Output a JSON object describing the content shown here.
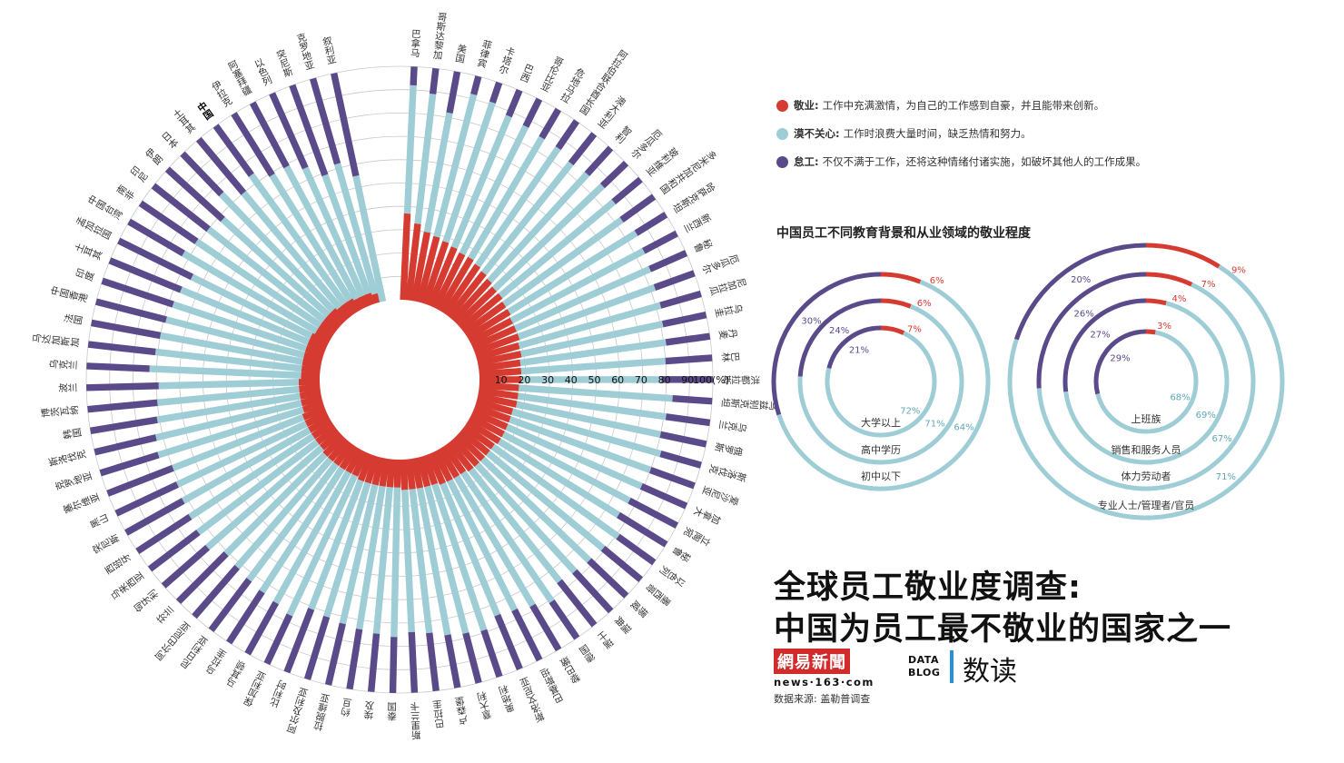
{
  "title": {
    "line1": "全球员工敬业度调查:",
    "line2": "中国为员工最不敬业的国家之一"
  },
  "legend": [
    {
      "key": "敬业:",
      "text": "工作中充满激情，为自己的工作感到自豪，并且能带来创新。",
      "color": "#d63b32"
    },
    {
      "key": "漠不关心:",
      "text": "工作时浪费大量时间，缺乏热情和努力。",
      "color": "#9ecdd6"
    },
    {
      "key": "怠工:",
      "text": "不仅不满于工作，还将这种情绪付诸实施，如破坏其他人的工作成果。",
      "color": "#5b4a8a"
    }
  ],
  "section_title": "中国员工不同教育背景和从业领域的敬业程度",
  "logo": {
    "brand": "網易新聞",
    "url": "news·163·com",
    "datablog_1": "DATA",
    "datablog_2": "BLOG",
    "shudu": "数读"
  },
  "source": "数据来源: 盖勒普调查",
  "colors": {
    "engaged": "#d63b32",
    "not_engaged": "#9ecdd6",
    "disengaged": "#5b4a8a",
    "grid": "#c8c8c8"
  },
  "chart_data": [
    {
      "type": "radial-bar",
      "axis_ticks": [
        "10",
        "20",
        "30",
        "40",
        "50",
        "60",
        "70",
        "80",
        "90",
        "100(%)"
      ],
      "series": [
        {
          "name": "敬业",
          "color": "#d63b32"
        },
        {
          "name": "漠不关心",
          "color": "#9ecdd6"
        },
        {
          "name": "怠工",
          "color": "#5b4a8a"
        }
      ],
      "countries": [
        {
          "name": "巴拿马",
          "engaged": 37,
          "not_engaged": 55,
          "disengaged": 8
        },
        {
          "name": "哥斯达黎加",
          "engaged": 33,
          "not_engaged": 56,
          "disengaged": 11
        },
        {
          "name": "美国",
          "engaged": 30,
          "not_engaged": 52,
          "disengaged": 18
        },
        {
          "name": "菲律宾",
          "engaged": 29,
          "not_engaged": 63,
          "disengaged": 8
        },
        {
          "name": "卡塔尔",
          "engaged": 28,
          "not_engaged": 63,
          "disengaged": 9
        },
        {
          "name": "巴西",
          "engaged": 27,
          "not_engaged": 61,
          "disengaged": 12
        },
        {
          "name": "哥伦比亚",
          "engaged": 26,
          "not_engaged": 61,
          "disengaged": 13
        },
        {
          "name": "危地马拉",
          "engaged": 26,
          "not_engaged": 60,
          "disengaged": 14
        },
        {
          "name": "阿拉伯联合酋长国",
          "engaged": 25,
          "not_engaged": 61,
          "disengaged": 14
        },
        {
          "name": "澳大利亚",
          "engaged": 24,
          "not_engaged": 60,
          "disengaged": 16
        },
        {
          "name": "智利",
          "engaged": 23,
          "not_engaged": 62,
          "disengaged": 15
        },
        {
          "name": "厄瓜多尔",
          "engaged": 22,
          "not_engaged": 64,
          "disengaged": 14
        },
        {
          "name": "玻利维亚",
          "engaged": 22,
          "not_engaged": 63,
          "disengaged": 15
        },
        {
          "name": "多米尼加共和国",
          "engaged": 21,
          "not_engaged": 62,
          "disengaged": 17
        },
        {
          "name": "哈萨克斯坦",
          "engaged": 21,
          "not_engaged": 64,
          "disengaged": 15
        },
        {
          "name": "新西兰",
          "engaged": 20,
          "not_engaged": 64,
          "disengaged": 16
        },
        {
          "name": "秘鲁",
          "engaged": 20,
          "not_engaged": 63,
          "disengaged": 17
        },
        {
          "name": "厄瓜多尔",
          "engaged": 20,
          "not_engaged": 62,
          "disengaged": 18
        },
        {
          "name": "尼加拉瓜",
          "engaged": 19,
          "not_engaged": 63,
          "disengaged": 18
        },
        {
          "name": "乌拉圭",
          "engaged": 19,
          "not_engaged": 62,
          "disengaged": 19
        },
        {
          "name": "丹麦",
          "engaged": 18,
          "not_engaged": 63,
          "disengaged": 19
        },
        {
          "name": "巴林",
          "engaged": 18,
          "not_engaged": 62,
          "disengaged": 20
        },
        {
          "name": "洪都拉斯",
          "engaged": 18,
          "not_engaged": 60,
          "disengaged": 22
        },
        {
          "name": "乌兹别克斯坦",
          "engaged": 17,
          "not_engaged": 66,
          "disengaged": 17
        },
        {
          "name": "乌克兰",
          "engaged": 17,
          "not_engaged": 64,
          "disengaged": 19
        },
        {
          "name": "俄罗斯",
          "engaged": 17,
          "not_engaged": 63,
          "disengaged": 20
        },
        {
          "name": "斯洛伐克",
          "engaged": 16,
          "not_engaged": 66,
          "disengaged": 18
        },
        {
          "name": "爱沙尼亚",
          "engaged": 16,
          "not_engaged": 64,
          "disengaged": 20
        },
        {
          "name": "加拿大",
          "engaged": 16,
          "not_engaged": 63,
          "disengaged": 21
        },
        {
          "name": "立陶宛",
          "engaged": 16,
          "not_engaged": 61,
          "disengaged": 23
        },
        {
          "name": "秘鲁",
          "engaged": 16,
          "not_engaged": 60,
          "disengaged": 24
        },
        {
          "name": "以色列",
          "engaged": 15,
          "not_engaged": 66,
          "disengaged": 19
        },
        {
          "name": "墨西哥",
          "engaged": 15,
          "not_engaged": 64,
          "disengaged": 21
        },
        {
          "name": "挪威",
          "engaged": 15,
          "not_engaged": 63,
          "disengaged": 22
        },
        {
          "name": "瑞典",
          "engaged": 15,
          "not_engaged": 62,
          "disengaged": 23
        },
        {
          "name": "瑞士",
          "engaged": 15,
          "not_engaged": 61,
          "disengaged": 24
        },
        {
          "name": "德国",
          "engaged": 14,
          "not_engaged": 67,
          "disengaged": 19
        },
        {
          "name": "黎巴嫩",
          "engaged": 14,
          "not_engaged": 64,
          "disengaged": 22
        },
        {
          "name": "巴基斯坦",
          "engaged": 14,
          "not_engaged": 62,
          "disengaged": 24
        },
        {
          "name": "斯洛文尼亚",
          "engaged": 14,
          "not_engaged": 61,
          "disengaged": 25
        },
        {
          "name": "奥地利",
          "engaged": 13,
          "not_engaged": 66,
          "disengaged": 21
        },
        {
          "name": "意大利",
          "engaged": 13,
          "not_engaged": 65,
          "disengaged": 22
        },
        {
          "name": "卢森堡",
          "engaged": 13,
          "not_engaged": 64,
          "disengaged": 23
        },
        {
          "name": "巴拉圭",
          "engaged": 13,
          "not_engaged": 62,
          "disengaged": 25
        },
        {
          "name": "斯里兰卡",
          "engaged": 13,
          "not_engaged": 61,
          "disengaged": 26
        },
        {
          "name": "泰国",
          "engaged": 12,
          "not_engaged": 64,
          "disengaged": 24
        },
        {
          "name": "埃及",
          "engaged": 12,
          "not_engaged": 63,
          "disengaged": 25
        },
        {
          "name": "约旦",
          "engaged": 12,
          "not_engaged": 62,
          "disengaged": 26
        },
        {
          "name": "拉脱维亚",
          "engaged": 12,
          "not_engaged": 61,
          "disengaged": 27
        },
        {
          "name": "阿尔及利亚",
          "engaged": 12,
          "not_engaged": 60,
          "disengaged": 28
        },
        {
          "name": "比利时",
          "engaged": 12,
          "not_engaged": 59,
          "disengaged": 29
        },
        {
          "name": "保加利亚",
          "engaged": 11,
          "not_engaged": 66,
          "disengaged": 23
        },
        {
          "name": "马其顿",
          "engaged": 11,
          "not_engaged": 64,
          "disengaged": 25
        },
        {
          "name": "乌拉圭",
          "engaged": 11,
          "not_engaged": 63,
          "disengaged": 26
        },
        {
          "name": "尼日利亚",
          "engaged": 11,
          "not_engaged": 62,
          "disengaged": 27
        },
        {
          "name": "阿尔巴尼亚",
          "engaged": 11,
          "not_engaged": 61,
          "disengaged": 28
        },
        {
          "name": "芬兰",
          "engaged": 11,
          "not_engaged": 60,
          "disengaged": 29
        },
        {
          "name": "匈牙利",
          "engaged": 10,
          "not_engaged": 65,
          "disengaged": 25
        },
        {
          "name": "马来西亚",
          "engaged": 10,
          "not_engaged": 64,
          "disengaged": 26
        },
        {
          "name": "西班牙",
          "engaged": 10,
          "not_engaged": 63,
          "disengaged": 27
        },
        {
          "name": "突尼斯",
          "engaged": 10,
          "not_engaged": 62,
          "disengaged": 28
        },
        {
          "name": "黑山",
          "engaged": 10,
          "not_engaged": 61,
          "disengaged": 29
        },
        {
          "name": "塞尔维亚",
          "engaged": 10,
          "not_engaged": 60,
          "disengaged": 30
        },
        {
          "name": "克罗地亚",
          "engaged": 9,
          "not_engaged": 65,
          "disengaged": 26
        },
        {
          "name": "斯洛伐克",
          "engaged": 9,
          "not_engaged": 64,
          "disengaged": 27
        },
        {
          "name": "韩国",
          "engaged": 9,
          "not_engaged": 62,
          "disengaged": 29
        },
        {
          "name": "博茨瓦纳",
          "engaged": 9,
          "not_engaged": 61,
          "disengaged": 30
        },
        {
          "name": "波兰",
          "engaged": 9,
          "not_engaged": 60,
          "disengaged": 31
        },
        {
          "name": "乌克兰",
          "engaged": 8,
          "not_engaged": 65,
          "disengaged": 27
        },
        {
          "name": "马达加斯加",
          "engaged": 8,
          "not_engaged": 63,
          "disengaged": 29
        },
        {
          "name": "法国",
          "engaged": 8,
          "not_engaged": 62,
          "disengaged": 30
        },
        {
          "name": "中国香港",
          "engaged": 8,
          "not_engaged": 61,
          "disengaged": 31
        },
        {
          "name": "印度",
          "engaged": 8,
          "not_engaged": 60,
          "disengaged": 32
        },
        {
          "name": "土耳其",
          "engaged": 8,
          "not_engaged": 59,
          "disengaged": 33
        },
        {
          "name": "孟加拉国",
          "engaged": 8,
          "not_engaged": 57,
          "disengaged": 35
        },
        {
          "name": "中国台湾",
          "engaged": 7,
          "not_engaged": 66,
          "disengaged": 27
        },
        {
          "name": "南非",
          "engaged": 7,
          "not_engaged": 64,
          "disengaged": 29
        },
        {
          "name": "印尼",
          "engaged": 7,
          "not_engaged": 63,
          "disengaged": 30
        },
        {
          "name": "伊朗",
          "engaged": 7,
          "not_engaged": 61,
          "disengaged": 32
        },
        {
          "name": "日本",
          "engaged": 7,
          "not_engaged": 69,
          "disengaged": 24
        },
        {
          "name": "土耳其",
          "engaged": 6,
          "not_engaged": 64,
          "disengaged": 30
        },
        {
          "name": "中国",
          "engaged": 6,
          "not_engaged": 68,
          "disengaged": 26
        },
        {
          "name": "伊拉克",
          "engaged": 6,
          "not_engaged": 63,
          "disengaged": 31
        },
        {
          "name": "阿塞拜疆",
          "engaged": 5,
          "not_engaged": 64,
          "disengaged": 31
        },
        {
          "name": "以色列",
          "engaged": 5,
          "not_engaged": 60,
          "disengaged": 35
        },
        {
          "name": "突尼斯",
          "engaged": 5,
          "not_engaged": 54,
          "disengaged": 41
        },
        {
          "name": "克罗地亚",
          "engaged": 4,
          "not_engaged": 58,
          "disengaged": 38
        },
        {
          "name": "叙利亚",
          "engaged": 0,
          "not_engaged": 55,
          "disengaged": 45
        }
      ]
    },
    {
      "type": "concentric-ring",
      "title": "中国员工不同教育背景",
      "rings": [
        {
          "label": "大学以上",
          "engaged": "7%",
          "not_engaged": "72%",
          "disengaged": "21%",
          "engaged_v": 7,
          "disengaged_v": 21
        },
        {
          "label": "高中学历",
          "engaged": "6%",
          "not_engaged": "71%",
          "disengaged": "24%",
          "engaged_v": 6,
          "disengaged_v": 24
        },
        {
          "label": "初中以下",
          "engaged": "6%",
          "not_engaged": "64%",
          "disengaged": "30%",
          "engaged_v": 6,
          "disengaged_v": 30
        }
      ]
    },
    {
      "type": "concentric-ring",
      "title": "中国员工不同从业领域",
      "rings": [
        {
          "label": "上班族",
          "engaged": "3%",
          "not_engaged": "68%",
          "disengaged": "29%",
          "engaged_v": 3,
          "disengaged_v": 29
        },
        {
          "label": "销售和服务人员",
          "engaged": "4%",
          "not_engaged": "69%",
          "disengaged": "27%",
          "engaged_v": 4,
          "disengaged_v": 27
        },
        {
          "label": "体力劳动者",
          "engaged": "7%",
          "not_engaged": "67%",
          "disengaged": "26%",
          "engaged_v": 7,
          "disengaged_v": 26
        },
        {
          "label": "专业人士/管理者/官员",
          "engaged": "9%",
          "not_engaged": "71%",
          "disengaged": "20%",
          "engaged_v": 9,
          "disengaged_v": 20
        }
      ]
    }
  ]
}
